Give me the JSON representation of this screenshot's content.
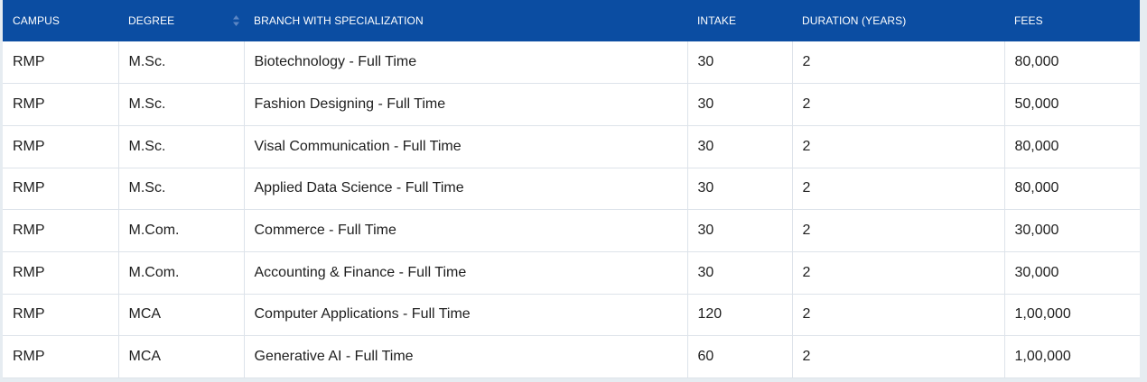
{
  "table": {
    "headers": {
      "campus": "CAMPUS",
      "degree": "DEGREE",
      "branch": "BRANCH WITH SPECIALIZATION",
      "intake": "INTAKE",
      "duration": "DURATION (YEARS)",
      "fees": "FEES"
    },
    "rows": [
      {
        "campus": "RMP",
        "degree": "M.Sc.",
        "branch": "Biotechnology - Full Time",
        "intake": "30",
        "duration": "2",
        "fees": "80,000"
      },
      {
        "campus": "RMP",
        "degree": "M.Sc.",
        "branch": "Fashion Designing - Full Time",
        "intake": "30",
        "duration": "2",
        "fees": "50,000"
      },
      {
        "campus": "RMP",
        "degree": "M.Sc.",
        "branch": "Visal Communication - Full Time",
        "intake": "30",
        "duration": "2",
        "fees": "80,000"
      },
      {
        "campus": "RMP",
        "degree": "M.Sc.",
        "branch": "Applied Data Science - Full Time",
        "intake": "30",
        "duration": "2",
        "fees": "80,000"
      },
      {
        "campus": "RMP",
        "degree": "M.Com.",
        "branch": "Commerce - Full Time",
        "intake": "30",
        "duration": "2",
        "fees": "30,000"
      },
      {
        "campus": "RMP",
        "degree": "M.Com.",
        "branch": "Accounting & Finance - Full Time",
        "intake": "30",
        "duration": "2",
        "fees": "30,000"
      },
      {
        "campus": "RMP",
        "degree": "MCA",
        "branch": "Computer Applications - Full Time",
        "intake": "120",
        "duration": "2",
        "fees": "1,00,000"
      },
      {
        "campus": "RMP",
        "degree": "MCA",
        "branch": "Generative AI - Full Time",
        "intake": "60",
        "duration": "2",
        "fees": "1,00,000"
      }
    ]
  },
  "icons": {
    "sort": "sort-icon"
  },
  "colors": {
    "header_bg": "#0b4da2",
    "header_text": "#ffffff",
    "page_bg": "#e6ecf1",
    "row_border": "#dde3ea"
  }
}
